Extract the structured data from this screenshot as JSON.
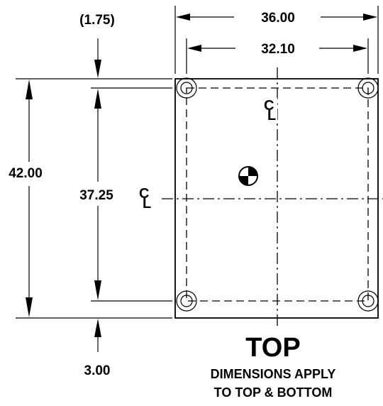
{
  "dimensions": {
    "overall_width": "36.00",
    "hole_spacing_width": "32.10",
    "overall_height": "42.00",
    "hole_spacing_height": "37.25",
    "top_offset": "(1.75)",
    "bottom_offset": "3.00"
  },
  "centerline_symbol": "C̲L",
  "view_title": "TOP",
  "note_line_1": "DIMENSIONS APPLY",
  "note_line_2": "TO TOP & BOTTOM"
}
